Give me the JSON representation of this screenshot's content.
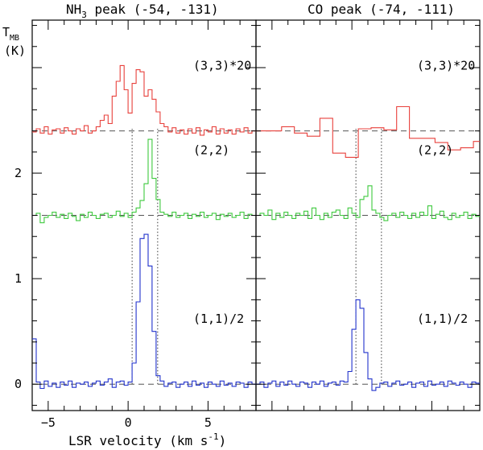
{
  "chart_data": {
    "type": "line",
    "style": "step",
    "xlabel_prefix": "LSR velocity (km s",
    "xlabel_exp": "-1",
    "xlabel_suffix": ")",
    "ylabel_main": "T",
    "ylabel_sub": "MB",
    "ylabel_unit": "(K)",
    "x_ticks": [
      -5,
      0,
      5
    ],
    "y_ticks": [
      0,
      1,
      2
    ],
    "ylim": [
      -0.25,
      3.45
    ],
    "panels": [
      {
        "id": "nh3",
        "title_prefix": "NH",
        "title_sub": "3",
        "title_suffix": " peak (-54, -131)",
        "xlim": [
          -6,
          8
        ],
        "markers": [
          0.25,
          1.85
        ],
        "series": [
          {
            "name": "(3,3)*20",
            "color": "#e8413c",
            "baseline": 2.4,
            "step": 0.25,
            "x_start": -6,
            "y": [
              2.39,
              2.42,
              2.38,
              2.44,
              2.37,
              2.41,
              2.42,
              2.38,
              2.43,
              2.4,
              2.37,
              2.42,
              2.4,
              2.45,
              2.38,
              2.4,
              2.44,
              2.5,
              2.55,
              2.47,
              2.73,
              2.87,
              3.02,
              2.79,
              2.57,
              2.85,
              2.98,
              2.96,
              2.73,
              2.79,
              2.7,
              2.58,
              2.47,
              2.44,
              2.39,
              2.43,
              2.38,
              2.41,
              2.37,
              2.42,
              2.38,
              2.43,
              2.36,
              2.41,
              2.39,
              2.44,
              2.37,
              2.42,
              2.38,
              2.41,
              2.37,
              2.42,
              2.39,
              2.43,
              2.38,
              2.4
            ]
          },
          {
            "name": "(2,2)",
            "color": "#3ec93e",
            "baseline": 1.6,
            "step": 0.25,
            "x_start": -6,
            "y": [
              1.6,
              1.62,
              1.53,
              1.58,
              1.6,
              1.63,
              1.58,
              1.61,
              1.57,
              1.62,
              1.59,
              1.55,
              1.61,
              1.58,
              1.63,
              1.6,
              1.57,
              1.61,
              1.62,
              1.58,
              1.6,
              1.64,
              1.59,
              1.62,
              1.58,
              1.63,
              1.67,
              1.74,
              1.9,
              2.32,
              1.95,
              1.75,
              1.63,
              1.61,
              1.59,
              1.63,
              1.58,
              1.6,
              1.62,
              1.57,
              1.61,
              1.59,
              1.63,
              1.58,
              1.6,
              1.62,
              1.56,
              1.61,
              1.59,
              1.62,
              1.58,
              1.6,
              1.63,
              1.57,
              1.61,
              1.6
            ]
          },
          {
            "name": "(1,1)/2",
            "color": "#2233cc",
            "baseline": 0.0,
            "step": 0.25,
            "x_start": -6,
            "y": [
              0.43,
              0.02,
              -0.04,
              0.03,
              -0.02,
              0.01,
              -0.03,
              0.02,
              -0.01,
              0.03,
              -0.03,
              0.01,
              0.0,
              0.02,
              -0.02,
              0.01,
              0.03,
              -0.01,
              0.02,
              0.05,
              -0.03,
              0.02,
              0.03,
              -0.01,
              0.02,
              0.2,
              0.78,
              1.38,
              1.42,
              1.12,
              0.5,
              0.08,
              0.03,
              -0.02,
              0.01,
              0.02,
              -0.03,
              0.0,
              0.02,
              -0.02,
              0.03,
              -0.01,
              0.01,
              -0.03,
              0.02,
              0.0,
              -0.02,
              0.03,
              -0.01,
              0.01,
              -0.02,
              0.02,
              0.01,
              -0.03,
              0.02,
              0.0
            ]
          }
        ]
      },
      {
        "id": "co",
        "title_prefix": "CO peak (-74, -111)",
        "title_sub": "",
        "title_suffix": "",
        "xlim": [
          -6,
          8
        ],
        "markers": [
          0.25,
          1.85
        ],
        "series": [
          {
            "name": "(3,3)*20",
            "color": "#e8413c",
            "baseline": 2.4,
            "step": 0.8,
            "x_start": -6,
            "y": [
              2.4,
              2.4,
              2.44,
              2.38,
              2.35,
              2.52,
              2.19,
              2.15,
              2.42,
              2.43,
              2.41,
              2.63,
              2.33,
              2.33,
              2.29,
              2.22,
              2.24,
              2.3
            ]
          },
          {
            "name": "(2,2)",
            "color": "#3ec93e",
            "baseline": 1.6,
            "step": 0.25,
            "x_start": -6,
            "y": [
              1.6,
              1.62,
              1.6,
              1.65,
              1.56,
              1.62,
              1.58,
              1.63,
              1.6,
              1.57,
              1.62,
              1.6,
              1.64,
              1.57,
              1.67,
              1.6,
              1.56,
              1.62,
              1.58,
              1.63,
              1.65,
              1.6,
              1.57,
              1.67,
              1.62,
              1.58,
              1.75,
              1.78,
              1.88,
              1.65,
              1.62,
              1.58,
              1.55,
              1.6,
              1.62,
              1.58,
              1.63,
              1.6,
              1.57,
              1.62,
              1.58,
              1.63,
              1.6,
              1.69,
              1.57,
              1.61,
              1.64,
              1.58,
              1.56,
              1.62,
              1.58,
              1.6,
              1.63,
              1.57,
              1.61,
              1.59
            ]
          },
          {
            "name": "(1,1)/2",
            "color": "#2233cc",
            "baseline": 0.0,
            "step": 0.25,
            "x_start": -6,
            "y": [
              0.0,
              0.02,
              -0.03,
              0.01,
              0.03,
              -0.02,
              0.02,
              -0.01,
              0.03,
              0.0,
              -0.02,
              0.02,
              0.01,
              -0.03,
              0.02,
              0.0,
              0.03,
              -0.02,
              0.01,
              0.02,
              -0.01,
              0.03,
              0.02,
              0.12,
              0.52,
              0.8,
              0.72,
              0.3,
              0.05,
              -0.06,
              -0.03,
              0.01,
              0.02,
              -0.02,
              0.01,
              0.03,
              -0.01,
              0.0,
              0.02,
              -0.03,
              0.01,
              0.02,
              -0.02,
              0.03,
              -0.01,
              0.0,
              0.02,
              -0.02,
              0.03,
              0.01,
              -0.01,
              0.02,
              0.0,
              -0.03,
              0.02,
              0.01
            ]
          }
        ]
      }
    ]
  }
}
